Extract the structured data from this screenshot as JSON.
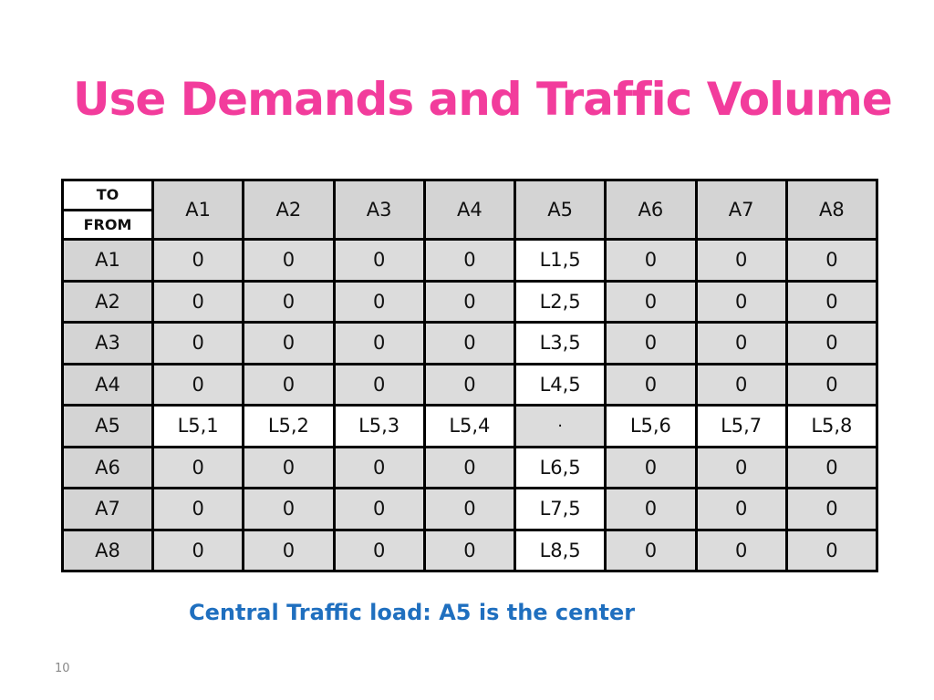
{
  "slide": {
    "title": "Use Demands and Traffic Volume",
    "caption": "Central Traffic load: A5 is the center",
    "page_number": "10"
  },
  "table": {
    "corner_top": "TO",
    "corner_bottom": "FROM",
    "columns": [
      "A1",
      "A2",
      "A3",
      "A4",
      "A5",
      "A6",
      "A7",
      "A8"
    ],
    "rows": [
      {
        "label": "A1",
        "cells": [
          "0",
          "0",
          "0",
          "0",
          "L1,5",
          "0",
          "0",
          "0"
        ]
      },
      {
        "label": "A2",
        "cells": [
          "0",
          "0",
          "0",
          "0",
          "L2,5",
          "0",
          "0",
          "0"
        ]
      },
      {
        "label": "A3",
        "cells": [
          "0",
          "0",
          "0",
          "0",
          "L3,5",
          "0",
          "0",
          "0"
        ]
      },
      {
        "label": "A4",
        "cells": [
          "0",
          "0",
          "0",
          "0",
          "L4,5",
          "0",
          "0",
          "0"
        ]
      },
      {
        "label": "A5",
        "cells": [
          "L5,1",
          "L5,2",
          "L5,3",
          "L5,4",
          "·",
          "L5,6",
          "L5,7",
          "L5,8"
        ]
      },
      {
        "label": "A6",
        "cells": [
          "0",
          "0",
          "0",
          "0",
          "L6,5",
          "0",
          "0",
          "0"
        ]
      },
      {
        "label": "A7",
        "cells": [
          "0",
          "0",
          "0",
          "0",
          "L7,5",
          "0",
          "0",
          "0"
        ]
      },
      {
        "label": "A8",
        "cells": [
          "0",
          "0",
          "0",
          "0",
          "L8,5",
          "0",
          "0",
          "0"
        ]
      }
    ]
  },
  "colors": {
    "title": "#f23c9c",
    "caption": "#1f6fbf",
    "cell_grey": "#dcdcdc",
    "cell_highlight": "#ffffff"
  }
}
